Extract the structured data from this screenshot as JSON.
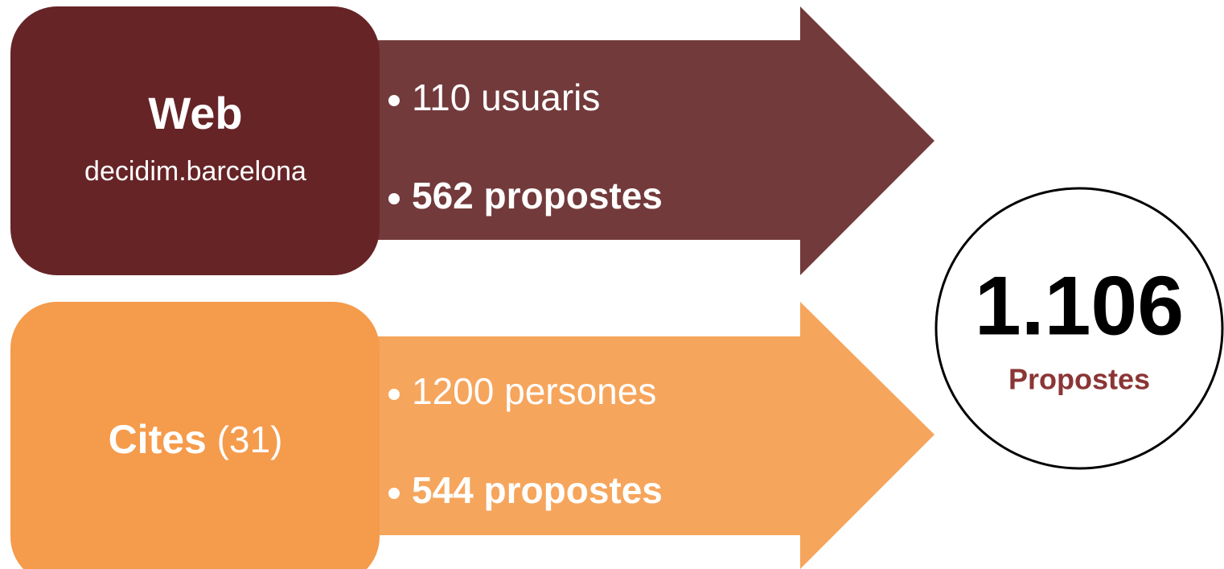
{
  "rows": [
    {
      "title": "Web",
      "subtitle": "decidim.barcelona",
      "bullets": [
        "110 usuaris",
        "562 propostes"
      ]
    },
    {
      "title": "Cites",
      "note": "(31)",
      "bullets": [
        "1200 persones",
        "544 propostes"
      ]
    }
  ],
  "total": {
    "value": "1.106",
    "label": "Propostes"
  }
}
